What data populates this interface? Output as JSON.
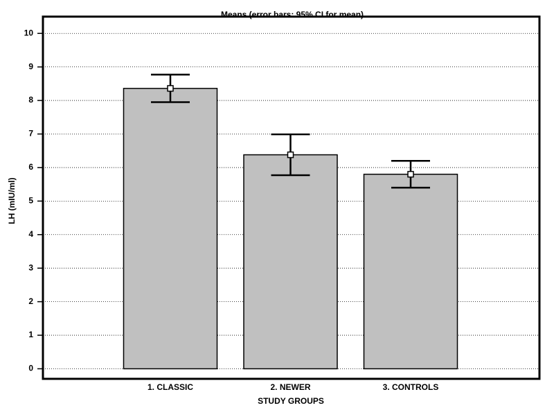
{
  "chart_data": {
    "type": "bar",
    "title": "Means  (error bars: 95% CI for mean)",
    "x_label": "STUDY GROUPS",
    "y_label": "LH (mIU/ml)",
    "categories": [
      "1. CLASSIC",
      "2. NEWER",
      "3. CONTROLS"
    ],
    "values": [
      8.36,
      6.38,
      5.8
    ],
    "errors": [
      0.41,
      0.61,
      0.4
    ],
    "color": "#c0c0c0",
    "ylim": [
      -0.3,
      10.5
    ],
    "yticks": [
      0,
      1,
      2,
      3,
      4,
      5,
      6,
      7,
      8,
      9,
      10
    ],
    "grid": true
  }
}
